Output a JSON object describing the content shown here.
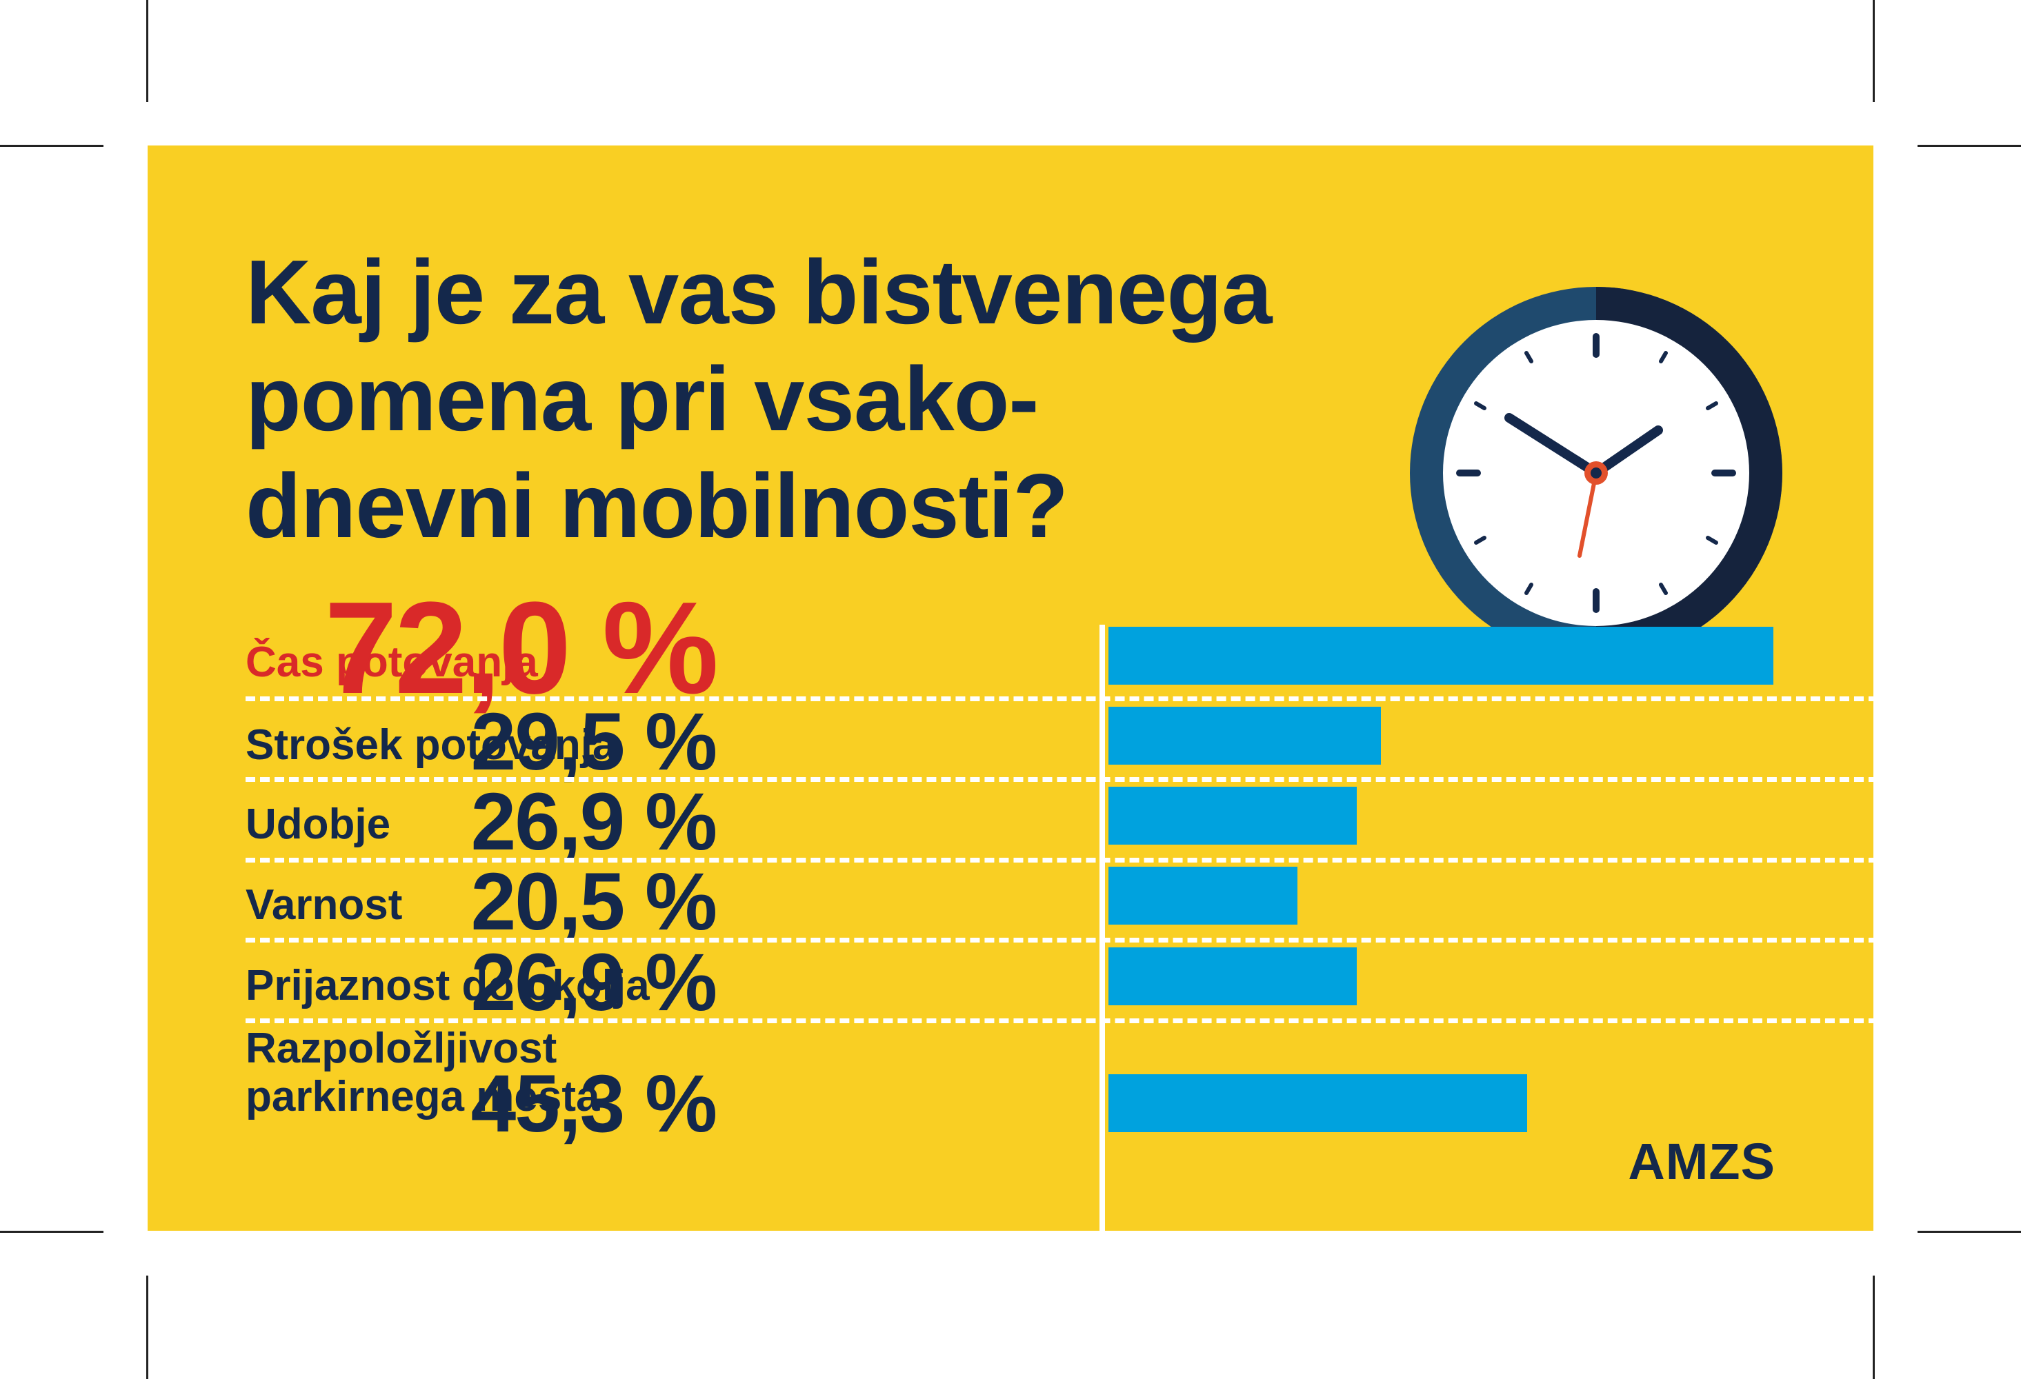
{
  "header": {
    "title_lines": [
      "Kaj je za vas bistvenega",
      "pomena pri vsako-",
      "dnevni mobilnosti?"
    ]
  },
  "brand": {
    "logo_text": "AMZS"
  },
  "colors": {
    "background": "#f9cf23",
    "text": "#14284b",
    "highlight": "#d92929",
    "bar": "#00a2de"
  },
  "chart_data": {
    "type": "bar",
    "orientation": "horizontal",
    "title": "Kaj je za vas bistvenega pomena pri vsakodnevni mobilnosti?",
    "categories": [
      "Čas potovanja",
      "Strošek potovanja",
      "Udobje",
      "Varnost",
      "Prijaznost do okolja",
      "Razpoložljivost parkirnega mesta"
    ],
    "category_lines": [
      [
        "Čas potovanja"
      ],
      [
        "Strošek potovanja"
      ],
      [
        "Udobje"
      ],
      [
        "Varnost"
      ],
      [
        "Prijaznost do okolja"
      ],
      [
        "Razpoložljivost",
        "parkirnega mesta"
      ]
    ],
    "values": [
      72.0,
      29.5,
      26.9,
      20.5,
      26.9,
      45.3
    ],
    "value_labels": [
      "72,0 %",
      "29,5 %",
      "26,9 %",
      "20,5 %",
      "26,9 %",
      "45,3 %"
    ],
    "highlight_index": 0,
    "xlim": [
      0,
      72.0
    ],
    "unit": "%"
  }
}
